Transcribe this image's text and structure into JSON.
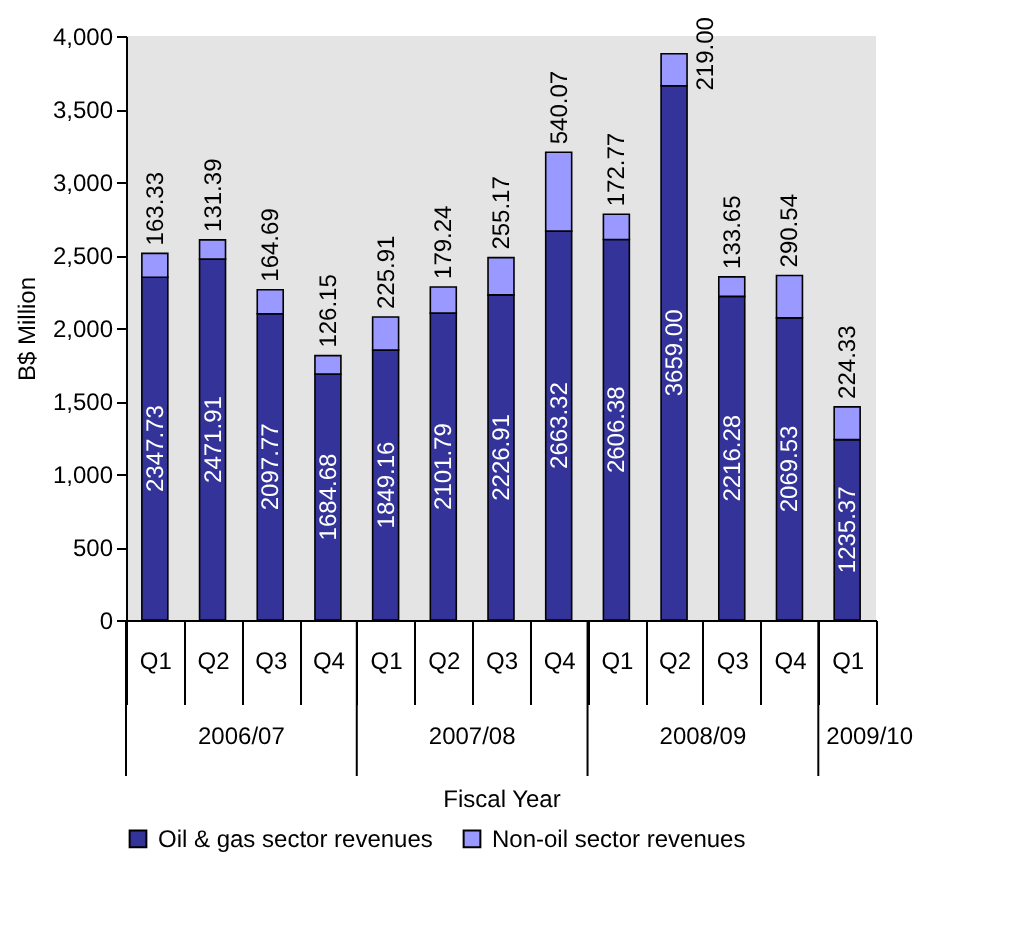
{
  "chart_data": {
    "type": "bar",
    "stacked": true,
    "categories": [
      "Q1",
      "Q2",
      "Q3",
      "Q4",
      "Q1",
      "Q2",
      "Q3",
      "Q4",
      "Q1",
      "Q2",
      "Q3",
      "Q4",
      "Q1"
    ],
    "series": [
      {
        "name": "Oil & gas sector revenues",
        "color": "#333399",
        "values": [
          2347.73,
          2471.91,
          2097.77,
          1684.68,
          1849.16,
          2101.79,
          2226.91,
          2663.32,
          2606.38,
          3659.0,
          2216.28,
          2069.53,
          1235.37
        ],
        "value_labels": [
          "2347.73",
          "2471.91",
          "2097.77",
          "1684.68",
          "1849.16",
          "2101.79",
          "2226.91",
          "2663.32",
          "2606.38",
          "3659.00",
          "2216.28",
          "2069.53",
          "1235.37"
        ]
      },
      {
        "name": "Non-oil sector revenues",
        "color": "#9999ff",
        "values": [
          163.33,
          131.39,
          164.69,
          126.15,
          225.91,
          179.24,
          255.17,
          540.07,
          172.77,
          219.0,
          133.65,
          290.54,
          224.33
        ],
        "value_labels": [
          "163.33",
          "131.39",
          "164.69",
          "126.15",
          "225.91",
          "179.24",
          "255.17",
          "540.07",
          "172.77",
          "219.00",
          "133.65",
          "290.54",
          "224.33"
        ]
      }
    ],
    "xlabel": "Fiscal Year",
    "ylabel": "B$ Million",
    "ylim": [
      0,
      4000
    ],
    "yticks": [
      0,
      500,
      {
        "value": 1000,
        "label": "1,000"
      },
      {
        "value": 1500,
        "label": "1,500"
      },
      {
        "value": 2000,
        "label": "2,000"
      },
      {
        "value": 2500,
        "label": "2,500"
      },
      {
        "value": 3000,
        "label": "3,000"
      },
      {
        "value": 3500,
        "label": "3,500"
      },
      {
        "value": 4000,
        "label": "4,000"
      }
    ],
    "grid": false,
    "legend": "bottom",
    "annotations": [
      "2006/07",
      "2007/08",
      "2008/09",
      "2009/10"
    ]
  }
}
